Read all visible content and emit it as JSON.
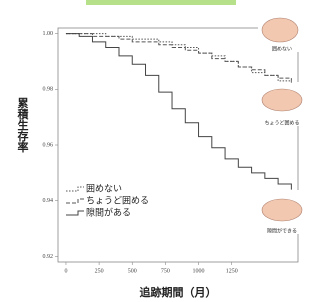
{
  "chart_data": {
    "type": "line",
    "step": true,
    "y_label": "累積生存率",
    "x_label": "追跡期間（月）",
    "x": [
      0,
      100,
      200,
      300,
      400,
      500,
      600,
      700,
      800,
      900,
      1000,
      1100,
      1200,
      1300,
      1400,
      1500,
      1600,
      1700
    ],
    "series": [
      {
        "name": "囲めない",
        "color": "#555555",
        "dash": "1.5,1.5",
        "values": [
          1.0,
          1.0,
          1.0,
          0.999,
          0.999,
          0.998,
          0.998,
          0.997,
          0.996,
          0.995,
          0.993,
          0.992,
          0.99,
          0.988,
          0.986,
          0.985,
          0.983,
          0.982
        ]
      },
      {
        "name": "ちょうど囲める",
        "color": "#555555",
        "dash": "4,2",
        "values": [
          1.0,
          1.0,
          0.999,
          0.999,
          0.998,
          0.997,
          0.997,
          0.996,
          0.995,
          0.994,
          0.993,
          0.991,
          0.99,
          0.988,
          0.987,
          0.985,
          0.984,
          0.983
        ]
      },
      {
        "name": "隙間がある",
        "color": "#444444",
        "dash": "none",
        "values": [
          1.0,
          0.999,
          0.997,
          0.995,
          0.992,
          0.989,
          0.985,
          0.979,
          0.973,
          0.968,
          0.963,
          0.959,
          0.955,
          0.952,
          0.95,
          0.948,
          0.946,
          0.944
        ]
      }
    ],
    "xlim": [
      -60,
      1750
    ],
    "xticks": [
      0,
      250,
      500,
      750,
      1000,
      1250
    ],
    "ylim": [
      0.918,
      1.002
    ],
    "yticks": [
      {
        "value": 1.0,
        "label": "1.00"
      },
      0.98,
      0.96,
      0.94,
      0.92
    ],
    "annotations": [
      "囲めない",
      "ちょうど囲める",
      "隙間ができる"
    ]
  }
}
